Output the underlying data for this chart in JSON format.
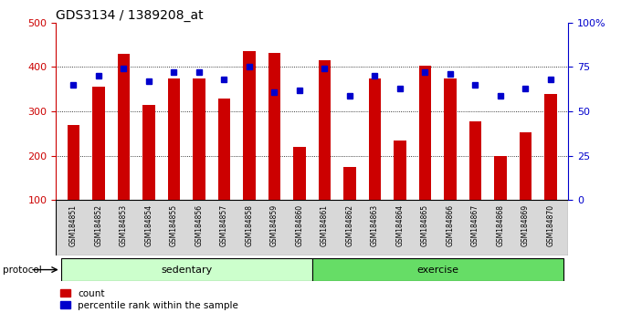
{
  "title": "GDS3134 / 1389208_at",
  "samples": [
    "GSM184851",
    "GSM184852",
    "GSM184853",
    "GSM184854",
    "GSM184855",
    "GSM184856",
    "GSM184857",
    "GSM184858",
    "GSM184859",
    "GSM184860",
    "GSM184861",
    "GSM184862",
    "GSM184863",
    "GSM184864",
    "GSM184865",
    "GSM184866",
    "GSM184867",
    "GSM184868",
    "GSM184869",
    "GSM184870"
  ],
  "counts": [
    270,
    355,
    430,
    315,
    375,
    375,
    330,
    435,
    432,
    220,
    415,
    175,
    375,
    235,
    402,
    375,
    278,
    200,
    252,
    340
  ],
  "percentile_ranks": [
    65,
    70,
    74,
    67,
    72,
    72,
    68,
    75,
    61,
    62,
    74,
    59,
    70,
    63,
    72,
    71,
    65,
    59,
    63,
    68
  ],
  "sedentary_count": 10,
  "exercise_count": 10,
  "ylim_left": [
    100,
    500
  ],
  "ylim_right": [
    0,
    100
  ],
  "yticks_left": [
    100,
    200,
    300,
    400,
    500
  ],
  "yticks_right": [
    0,
    25,
    50,
    75,
    100
  ],
  "bar_color": "#cc0000",
  "dot_color": "#0000cc",
  "sedentary_color_light": "#ccffcc",
  "exercise_color": "#66dd66",
  "protocol_label": "protocol",
  "sedentary_label": "sedentary",
  "exercise_label": "exercise",
  "legend_count": "count",
  "legend_percentile": "percentile rank within the sample"
}
